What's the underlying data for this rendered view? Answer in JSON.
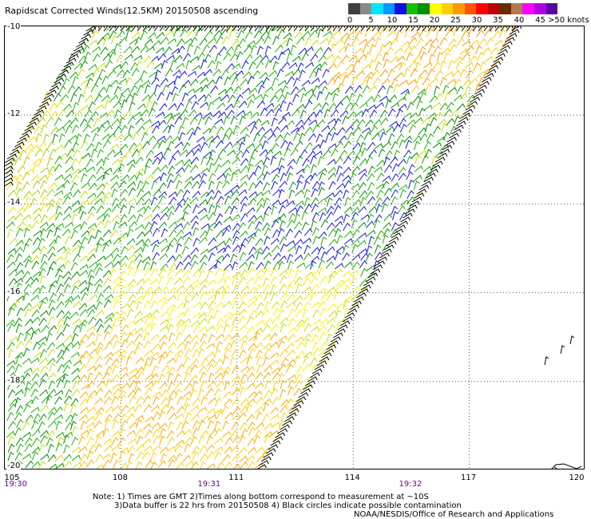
{
  "title": "Rapidscat Corrected Winds(12.5KM) 20150508 ascending",
  "colorbar": {
    "ticks": [
      "0",
      "5",
      "10",
      "15",
      "20",
      "25",
      "30",
      "35",
      "40",
      "45"
    ],
    "unit": ">50 knots",
    "colors": [
      "#404040",
      "#8a8a8a",
      "#00e5ff",
      "#0099ff",
      "#1010e0",
      "#12c000",
      "#009000",
      "#ffff00",
      "#ffd000",
      "#ff9900",
      "#ff5500",
      "#ff0000",
      "#bb0000",
      "#6b2a00",
      "#b07a50",
      "#ff00ff",
      "#b000e0",
      "#5a00a0"
    ]
  },
  "map": {
    "lat_labels": [
      "-10",
      "-12",
      "-14",
      "-16",
      "-18",
      "-20"
    ],
    "lon_labels": [
      "105",
      "108",
      "111",
      "114",
      "117",
      "120"
    ],
    "lat_range": [
      -20,
      -10
    ],
    "lon_range": [
      105,
      120
    ],
    "grid": "dotted",
    "times": [
      {
        "label": "19:30",
        "lon": 105.3
      },
      {
        "label": "19:31",
        "lon": 110.3
      },
      {
        "label": "19:32",
        "lon": 115.5
      }
    ],
    "swath_edge_color": "#000000"
  },
  "notes": {
    "line1": "Note: 1) Times are GMT 2)Times along bottom correspond to measurement at ~10S",
    "line2": "3)Data buffer is 22 hrs from 20150508 4) Black circles indicate possible contamination",
    "line3": "NOAA/NESDIS/Office of Research and Applications"
  }
}
